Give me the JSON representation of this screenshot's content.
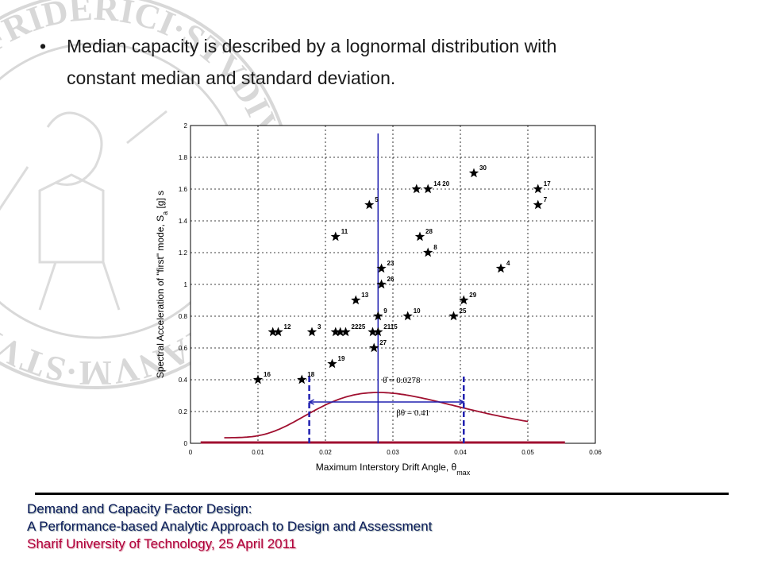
{
  "slide": {
    "bullet_symbol": "•",
    "bullet_line1": "Median capacity is described by a lognormal distribution with",
    "bullet_line2": "constant median and standard deviation."
  },
  "footer": {
    "line1": "Demand and Capacity Factor Design:",
    "line2": "A Performance-based Analytic Approach to Design and Assessment",
    "line3": "Sharif University of Technology, 25 April 2011"
  },
  "seal": {
    "text": "AUGVST·FRIDERICI·STVDIVM·NEAPOLITANVM·STVDIORVM·VNIVERSITAS·"
  },
  "chart_data": {
    "type": "scatter",
    "xlabel": "Maximum Interstory Drift Angle, θ",
    "xlabel_sub": "max",
    "ylabel": "Spectral Acceleration of \"first\" mode, S",
    "ylabel_sub": "a",
    "ylabel_unit": " [g] s",
    "xlim": [
      0,
      0.06
    ],
    "ylim": [
      0,
      2
    ],
    "grid": true,
    "x_ticks": [
      "0",
      "0.01",
      "0.02",
      "0.03",
      "0.04",
      "0.05",
      "0.06"
    ],
    "y_ticks": [
      "0",
      "0.2",
      "0.4",
      "0.6",
      "0.8",
      "1",
      "1.2",
      "1.4",
      "1.6",
      "1.8",
      "2"
    ],
    "points": [
      {
        "x": 0.01,
        "y": 0.4,
        "label": "16"
      },
      {
        "x": 0.0165,
        "y": 0.4,
        "label": "18"
      },
      {
        "x": 0.0122,
        "y": 0.7,
        "label": ""
      },
      {
        "x": 0.013,
        "y": 0.7,
        "label": "12"
      },
      {
        "x": 0.018,
        "y": 0.7,
        "label": "3"
      },
      {
        "x": 0.0215,
        "y": 0.7,
        "label": ""
      },
      {
        "x": 0.0222,
        "y": 0.7,
        "label": ""
      },
      {
        "x": 0.023,
        "y": 0.7,
        "label": "2225"
      },
      {
        "x": 0.021,
        "y": 0.5,
        "label": "19"
      },
      {
        "x": 0.0215,
        "y": 1.3,
        "label": "11"
      },
      {
        "x": 0.0245,
        "y": 0.9,
        "label": "13"
      },
      {
        "x": 0.0265,
        "y": 1.5,
        "label": "5"
      },
      {
        "x": 0.027,
        "y": 0.7,
        "label": ""
      },
      {
        "x": 0.0278,
        "y": 0.7,
        "label": "2115"
      },
      {
        "x": 0.0272,
        "y": 0.6,
        "label": "27"
      },
      {
        "x": 0.0278,
        "y": 0.8,
        "label": "9"
      },
      {
        "x": 0.0283,
        "y": 1.0,
        "label": "26"
      },
      {
        "x": 0.0283,
        "y": 1.1,
        "label": "23"
      },
      {
        "x": 0.0322,
        "y": 0.8,
        "label": "10"
      },
      {
        "x": 0.0335,
        "y": 1.6,
        "label": ""
      },
      {
        "x": 0.0352,
        "y": 1.6,
        "label": "14 20"
      },
      {
        "x": 0.034,
        "y": 1.3,
        "label": "28"
      },
      {
        "x": 0.0352,
        "y": 1.2,
        "label": "8"
      },
      {
        "x": 0.039,
        "y": 0.8,
        "label": "25"
      },
      {
        "x": 0.0405,
        "y": 0.9,
        "label": "29"
      },
      {
        "x": 0.042,
        "y": 1.7,
        "label": "30"
      },
      {
        "x": 0.046,
        "y": 1.1,
        "label": "4"
      },
      {
        "x": 0.0515,
        "y": 1.6,
        "label": "17"
      },
      {
        "x": 0.0515,
        "y": 1.5,
        "label": "7"
      }
    ],
    "median_x": 0.0278,
    "sigma": 0.41,
    "dashed_x": [
      0.0176,
      0.0405
    ],
    "bracket_y": 0.26,
    "pdf_peak_y": 0.285,
    "pdf_range": [
      0.005,
      0.05
    ],
    "annotation_median": "= 0.0278",
    "annotation_beta": "= 0.41",
    "colors": {
      "curve": "#a01030",
      "median": "#2020b0",
      "bracket": "#2020b0",
      "dashed": "#2020b0",
      "baseline": "#a01030"
    }
  }
}
